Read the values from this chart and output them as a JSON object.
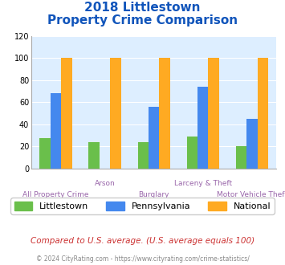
{
  "title_line1": "2018 Littlestown",
  "title_line2": "Property Crime Comparison",
  "categories": [
    "All Property Crime",
    "Arson",
    "Burglary",
    "Larceny & Theft",
    "Motor Vehicle Theft"
  ],
  "littlestown": [
    27,
    24,
    24,
    29,
    20
  ],
  "pennsylvania": [
    68,
    0,
    56,
    74,
    45
  ],
  "national": [
    100,
    100,
    100,
    100,
    100
  ],
  "bar_colors": {
    "littlestown": "#6abf4b",
    "pennsylvania": "#4488ee",
    "national": "#ffaa22"
  },
  "ylim": [
    0,
    120
  ],
  "yticks": [
    0,
    20,
    40,
    60,
    80,
    100,
    120
  ],
  "legend_labels": [
    "Littlestown",
    "Pennsylvania",
    "National"
  ],
  "footnote1": "Compared to U.S. average. (U.S. average equals 100)",
  "footnote2": "© 2024 CityRating.com - https://www.cityrating.com/crime-statistics/",
  "title_color": "#1155bb",
  "footnote1_color": "#cc3333",
  "footnote2_color": "#888888",
  "xlabel_color": "#9966aa",
  "bg_color": "#ddeeff",
  "fig_bg": "#ffffff",
  "bar_width": 0.22
}
